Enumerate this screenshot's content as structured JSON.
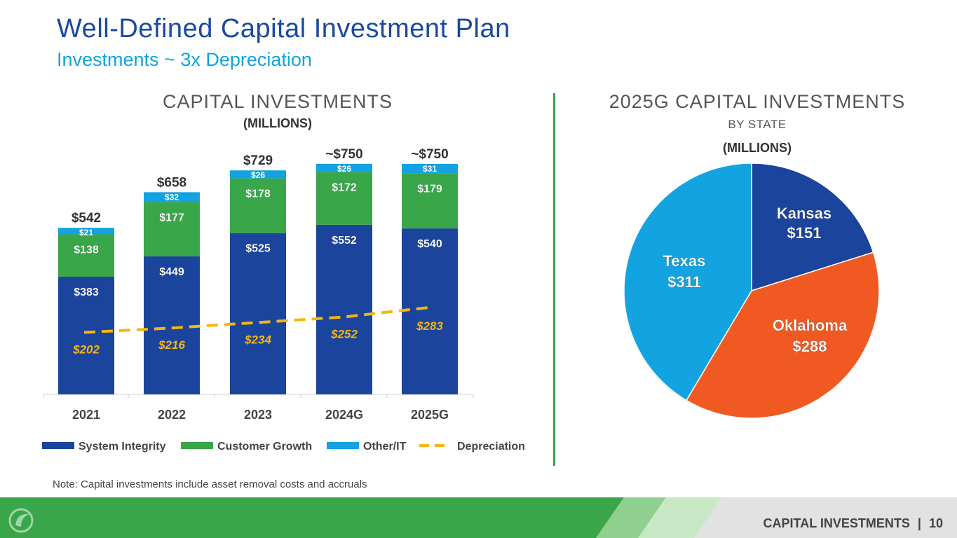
{
  "header": {
    "title": "Well-Defined Capital Investment Plan",
    "subtitle": "Investments ~ 3x Depreciation"
  },
  "left_panel": {
    "title": "CAPITAL INVESTMENTS",
    "units": "(MILLIONS)"
  },
  "right_panel": {
    "title": "2025G CAPITAL INVESTMENTS",
    "subtitle": "BY STATE",
    "units": "(MILLIONS)"
  },
  "note": "Note: Capital investments include asset removal costs and accruals",
  "footer": {
    "section": "CAPITAL INVESTMENTS",
    "separator": "|",
    "page_number": "10"
  },
  "colors": {
    "system_integrity": "#1b449c",
    "customer_growth": "#3aa64a",
    "other_it": "#12a3e0",
    "depreciation": "#f4b612",
    "kansas": "#1b449c",
    "oklahoma": "#f05a22",
    "texas": "#12a3e0"
  },
  "chart_data": [
    {
      "type": "bar",
      "stacked": true,
      "title": "CAPITAL INVESTMENTS (MILLIONS)",
      "categories": [
        "2021",
        "2022",
        "2023",
        "2024G",
        "2025G"
      ],
      "series": [
        {
          "name": "System Integrity",
          "values": [
            383,
            449,
            525,
            552,
            540
          ],
          "labels": [
            "$383",
            "$449",
            "$525",
            "$552",
            "$540"
          ]
        },
        {
          "name": "Customer Growth",
          "values": [
            138,
            177,
            178,
            172,
            179
          ],
          "labels": [
            "$138",
            "$177",
            "$178",
            "$172",
            "$179"
          ]
        },
        {
          "name": "Other/IT",
          "values": [
            21,
            32,
            26,
            26,
            31
          ],
          "labels": [
            "$21",
            "$32",
            "$26",
            "$26",
            "$31"
          ]
        }
      ],
      "totals": [
        "$542",
        "$658",
        "$729",
        "~$750",
        "~$750"
      ],
      "line_series": {
        "name": "Depreciation",
        "values": [
          202,
          216,
          234,
          252,
          283
        ],
        "labels": [
          "$202",
          "$216",
          "$234",
          "$252",
          "$283"
        ],
        "style": "dashed"
      },
      "ylim": [
        0,
        750
      ],
      "legend": [
        "System Integrity",
        "Customer Growth",
        "Other/IT",
        "Depreciation"
      ],
      "legend_position": "bottom"
    },
    {
      "type": "pie",
      "title": "2025G CAPITAL INVESTMENTS BY STATE (MILLIONS)",
      "slices": [
        {
          "name": "Kansas",
          "value": 151,
          "label": "$151"
        },
        {
          "name": "Oklahoma",
          "value": 288,
          "label": "$288"
        },
        {
          "name": "Texas",
          "value": 311,
          "label": "$311"
        }
      ]
    }
  ]
}
